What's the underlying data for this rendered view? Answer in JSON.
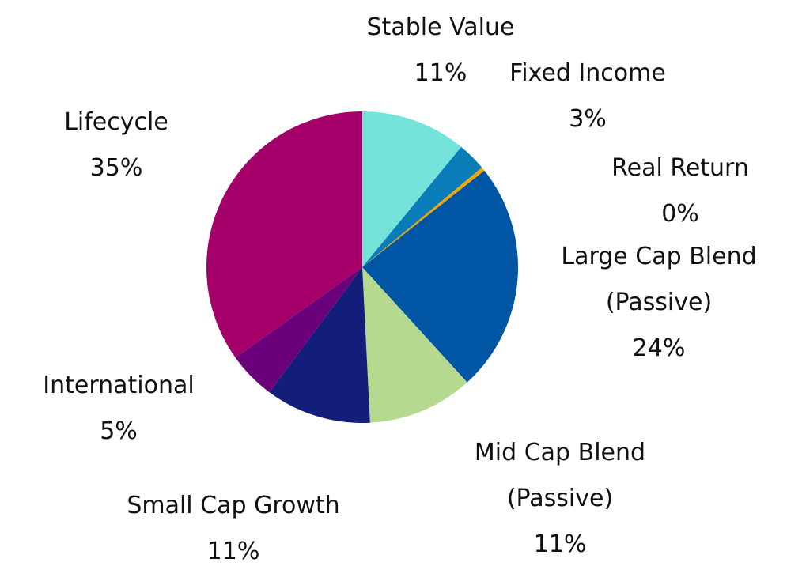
{
  "chart_data": {
    "type": "pie",
    "categories": [
      "Stable Value",
      "Fixed Income",
      "Real Return",
      "Large Cap Blend\n(Passive)",
      "Mid Cap Blend\n(Passive)",
      "Small Cap Growth",
      "International",
      "Lifecycle"
    ],
    "values": [
      11,
      3,
      0.4,
      24,
      11,
      11,
      5,
      35
    ],
    "value_labels": [
      "11%",
      "3%",
      "0%",
      "24%",
      "11%",
      "11%",
      "5%",
      "35%"
    ],
    "colors": [
      "#76e3da",
      "#0a7cb8",
      "#f0a800",
      "#0055a5",
      "#b5d98f",
      "#131e7b",
      "#6a007a",
      "#a5006a"
    ]
  }
}
